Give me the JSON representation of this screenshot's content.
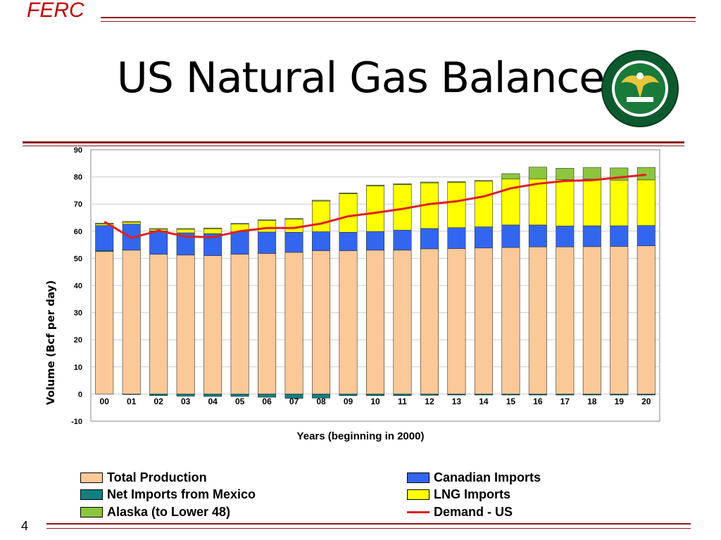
{
  "header": {
    "brand": "FERC",
    "title": "US Natural Gas Balance",
    "page_number": "4"
  },
  "colors": {
    "rule": "#8b1a1a",
    "brand": "#c00000"
  },
  "chart_data": {
    "type": "bar",
    "stacked": true,
    "title": "",
    "xlabel": "Years (beginning in 2000)",
    "ylabel": "Volume (Bcf per day)",
    "ylim": [
      -10,
      90
    ],
    "yticks": [
      -10,
      0,
      10,
      20,
      30,
      40,
      50,
      60,
      70,
      80,
      90
    ],
    "grid": true,
    "legend_placement": "bottom",
    "categories": [
      "00",
      "01",
      "02",
      "03",
      "04",
      "05",
      "06",
      "07",
      "08",
      "09",
      "10",
      "11",
      "12",
      "13",
      "14",
      "15",
      "16",
      "17",
      "18",
      "19",
      "20"
    ],
    "series": [
      {
        "name": "Total Production",
        "color": "#fbc898",
        "values": [
          52.5,
          53,
          51.5,
          51.2,
          51,
          51.5,
          51.8,
          52.2,
          52.8,
          52.8,
          53,
          53,
          53.5,
          53.6,
          53.8,
          54,
          54.2,
          54.2,
          54.3,
          54.4,
          54.6
        ]
      },
      {
        "name": "Net Imports from Mexico",
        "color": "#127f80",
        "values": [
          0.4,
          -0.2,
          -0.6,
          -0.8,
          -0.9,
          -0.9,
          -1.2,
          -1.6,
          -1.5,
          -0.6,
          -0.6,
          -0.6,
          -0.5,
          -0.4,
          -0.4,
          -0.4,
          -0.4,
          -0.4,
          -0.4,
          -0.4,
          -0.4
        ]
      },
      {
        "name": "Canadian Imports",
        "color": "#3366ee",
        "values": [
          9.2,
          9.6,
          8.6,
          8.2,
          8.1,
          8.3,
          7.9,
          7.4,
          7.0,
          6.8,
          6.9,
          7.4,
          7.5,
          7.7,
          7.8,
          8.3,
          8.1,
          7.7,
          7.7,
          7.6,
          7.5
        ]
      },
      {
        "name": "LNG Imports",
        "color": "#ffff00",
        "values": [
          0.6,
          0.7,
          0.6,
          1.3,
          1.8,
          2.8,
          4.2,
          4.8,
          11.3,
          14.2,
          16.8,
          16.8,
          16.8,
          16.7,
          16.8,
          16.9,
          17.0,
          17.1,
          17.2,
          16.8,
          16.8
        ]
      },
      {
        "name": "Alaska (to Lower 48)",
        "color": "#8cc63f",
        "values": [
          0.3,
          0.3,
          0.3,
          0.3,
          0.3,
          0.3,
          0.3,
          0.3,
          0.3,
          0.3,
          0.3,
          0.3,
          0.3,
          0.3,
          0.3,
          2.0,
          4.3,
          4.2,
          4.3,
          4.5,
          4.6
        ]
      }
    ],
    "lines": [
      {
        "name": "Demand - US",
        "color": "#e02020",
        "values": [
          63.5,
          57.5,
          60.2,
          58,
          57.8,
          60,
          61.2,
          61.2,
          62.8,
          65.5,
          66.8,
          68.2,
          70,
          71,
          72.8,
          75.8,
          77.5,
          78.5,
          78.8,
          79.8,
          80.8
        ]
      }
    ]
  }
}
